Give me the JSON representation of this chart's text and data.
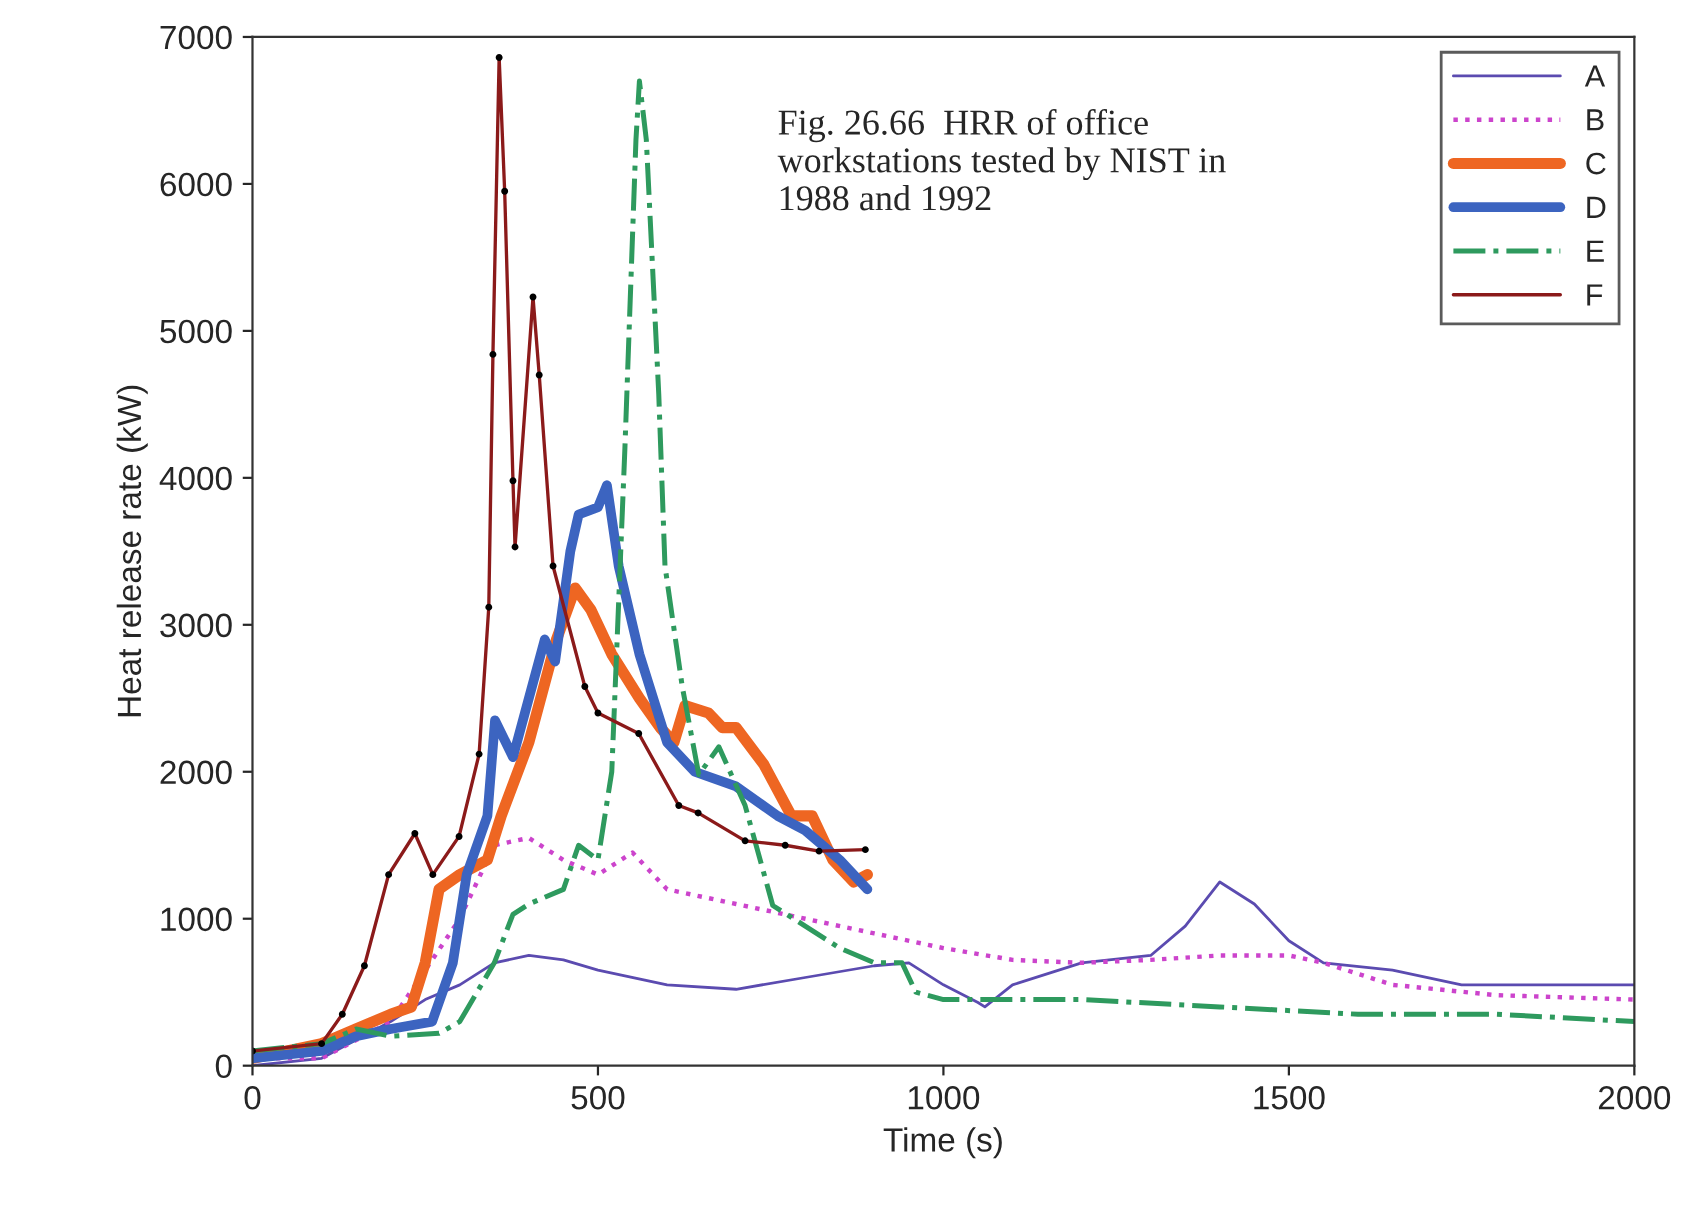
{
  "chart_data": {
    "type": "line",
    "xlabel": "Time (s)",
    "ylabel": "Heat release rate (kW)",
    "annotations": [
      "Fig. 26.66  HRR of office workstations tested by NIST in 1988 and 1992"
    ],
    "xlim": [
      0,
      2000
    ],
    "xticks": [
      0,
      500,
      1000,
      1500,
      2000
    ],
    "ylim": [
      0,
      7000
    ],
    "yticks": [
      0,
      1000,
      2000,
      3000,
      4000,
      5000,
      6000,
      7000
    ],
    "grid": false,
    "legend": "top right",
    "series": [
      {
        "name": "A",
        "color": "#5b4bb0",
        "line_style": "solid",
        "marker": "none",
        "x": [
          0,
          100,
          200,
          250,
          300,
          350,
          400,
          450,
          500,
          600,
          700,
          800,
          900,
          950,
          1000,
          1050,
          1060,
          1100,
          1200,
          1300,
          1350,
          1400,
          1450,
          1500,
          1550,
          1650,
          1750,
          2000
        ],
        "values": [
          0,
          50,
          300,
          450,
          550,
          700,
          750,
          720,
          650,
          550,
          520,
          600,
          680,
          700,
          550,
          430,
          400,
          550,
          700,
          750,
          950,
          1250,
          1100,
          850,
          700,
          650,
          550,
          550
        ]
      },
      {
        "name": "B",
        "color": "#cc44cc",
        "line_style": "dotted",
        "marker": "none",
        "x": [
          0,
          100,
          200,
          300,
          350,
          400,
          450,
          500,
          550,
          600,
          700,
          800,
          900,
          1000,
          1100,
          1200,
          1300,
          1400,
          1500,
          1550,
          1650,
          1800,
          2000
        ],
        "values": [
          50,
          50,
          300,
          1000,
          1500,
          1550,
          1400,
          1300,
          1450,
          1200,
          1100,
          1000,
          900,
          800,
          720,
          700,
          720,
          750,
          750,
          700,
          550,
          480,
          450
        ]
      },
      {
        "name": "C",
        "color": "#ee6622",
        "line_style": "solid",
        "marker": "none",
        "x": [
          0,
          100,
          150,
          200,
          230,
          250,
          270,
          300,
          340,
          360,
          400,
          440,
          467,
          490,
          520,
          560,
          590,
          610,
          626,
          660,
          680,
          700,
          740,
          780,
          810,
          840,
          870,
          890
        ],
        "values": [
          50,
          150,
          250,
          350,
          400,
          700,
          1200,
          1300,
          1400,
          1700,
          2200,
          2900,
          3250,
          3100,
          2800,
          2500,
          2300,
          2200,
          2450,
          2400,
          2300,
          2300,
          2050,
          1700,
          1700,
          1400,
          1250,
          1300
        ]
      },
      {
        "name": "D",
        "color": "#3c64c0",
        "line_style": "solid",
        "marker": "none",
        "x": [
          0,
          100,
          150,
          200,
          260,
          290,
          310,
          340,
          351,
          377,
          423,
          438,
          460,
          472,
          500,
          513,
          530,
          560,
          600,
          640,
          700,
          760,
          800,
          850,
          890
        ],
        "values": [
          50,
          100,
          200,
          250,
          300,
          700,
          1300,
          1700,
          2350,
          2100,
          2900,
          2750,
          3500,
          3750,
          3800,
          3950,
          3400,
          2800,
          2200,
          2000,
          1900,
          1700,
          1600,
          1400,
          1200
        ]
      },
      {
        "name": "E",
        "color": "#2e9a5e",
        "line_style": "dashdot",
        "marker": "none",
        "x": [
          0,
          100,
          150,
          200,
          270,
          300,
          350,
          377,
          400,
          450,
          472,
          500,
          520,
          539,
          555,
          560,
          570,
          588,
          597,
          622,
          646,
          675,
          713,
          753,
          800,
          850,
          900,
          940,
          960,
          1000,
          1200,
          1400,
          1600,
          1800,
          2000
        ],
        "values": [
          100,
          150,
          250,
          200,
          220,
          300,
          700,
          1030,
          1100,
          1200,
          1500,
          1400,
          2000,
          4200,
          6300,
          6700,
          6300,
          4570,
          3400,
          2580,
          1980,
          2170,
          1770,
          1090,
          950,
          800,
          700,
          700,
          500,
          450,
          450,
          400,
          350,
          350,
          300
        ]
      },
      {
        "name": "F",
        "color": "#8b1a1a",
        "line_style": "solid",
        "marker": "circle",
        "x": [
          0,
          100,
          130,
          162,
          197,
          235,
          261,
          299,
          328,
          342,
          348,
          357,
          365,
          377,
          380,
          406,
          415,
          435,
          481,
          500,
          559,
          617,
          645,
          713,
          771,
          820,
          887
        ],
        "values": [
          100,
          150,
          350,
          680,
          1300,
          1580,
          1300,
          1560,
          2120,
          3120,
          4840,
          6860,
          5950,
          3980,
          3530,
          5230,
          4700,
          3400,
          2580,
          2400,
          2260,
          1770,
          1720,
          1530,
          1500,
          1460,
          1470
        ]
      }
    ]
  }
}
